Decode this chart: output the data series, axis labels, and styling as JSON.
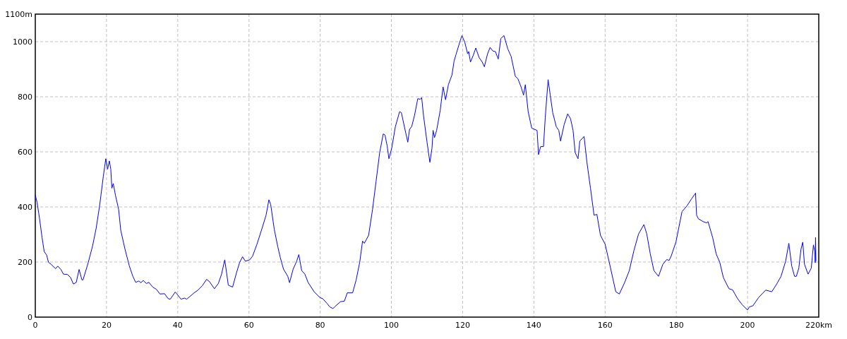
{
  "chart_data": {
    "type": "line",
    "grid": true,
    "xlim": [
      0,
      220
    ],
    "ylim": [
      0,
      1100
    ],
    "xticks": [
      0,
      20,
      40,
      60,
      80,
      100,
      120,
      140,
      160,
      180,
      200,
      {
        "value": 220,
        "label": "220km"
      }
    ],
    "yticks": [
      0,
      200,
      400,
      600,
      800,
      1000,
      {
        "value": 1100,
        "label": "1100m"
      }
    ],
    "series": [
      {
        "color": "#0000ff",
        "x": [
          0,
          0.5,
          1.2,
          1.9,
          2.5,
          3.2,
          3.7,
          4.5,
          5.7,
          6.3,
          7.2,
          7.9,
          9.0,
          9.9,
          10.7,
          11.5,
          12.3,
          13.1,
          13.4,
          14.8,
          16.1,
          17.1,
          18.1,
          19.1,
          19.8,
          20.3,
          20.8,
          21.2,
          21.5,
          21.9,
          22.5,
          23.4,
          24.0,
          25.2,
          26.4,
          27.4,
          28.2,
          29.0,
          29.7,
          30.3,
          31.2,
          31.9,
          33.0,
          34.0,
          35.0,
          36.3,
          37.3,
          37.9,
          39.3,
          39.9,
          40.9,
          41.9,
          42.5,
          43.6,
          44.6,
          45.6,
          46.9,
          48.1,
          48.9,
          50.3,
          51.4,
          52.3,
          53.2,
          54.2,
          55.4,
          56.5,
          57.4,
          58.2,
          59.0,
          60.2,
          61.0,
          62.2,
          63.5,
          64.8,
          65.6,
          66.1,
          67.1,
          68.1,
          68.8,
          69.7,
          70.9,
          71.4,
          72.4,
          73.4,
          74.0,
          74.8,
          75.7,
          76.6,
          78.3,
          79.9,
          80.7,
          81.9,
          82.7,
          83.6,
          84.2,
          85.7,
          86.8,
          87.6,
          89.1,
          90.1,
          91.1,
          91.9,
          92.4,
          93.6,
          94.7,
          95.7,
          96.7,
          97.7,
          98.2,
          98.8,
          99.3,
          100.1,
          101.1,
          102.3,
          102.8,
          103.8,
          104.6,
          105.1,
          105.7,
          106.5,
          107.4,
          108.1,
          108.5,
          109.0,
          110.0,
          110.8,
          111.4,
          111.7,
          112.1,
          112.7,
          113.7,
          114.5,
          115.2,
          116.0,
          117.0,
          117.6,
          118.2,
          119.3,
          119.8,
          120.6,
          121.4,
          121.7,
          122.2,
          123.0,
          123.7,
          124.6,
          125.5,
          126.1,
          127.0,
          127.7,
          128.5,
          129.2,
          130.0,
          130.7,
          131.6,
          132.7,
          133.6,
          134.8,
          135.5,
          136.4,
          137.1,
          137.6,
          138.4,
          139.4,
          140.1,
          140.9,
          141.3,
          141.9,
          142.7,
          143.2,
          144.0,
          144.6,
          145.3,
          146.3,
          147.0,
          147.5,
          148.5,
          149.5,
          150.3,
          151.0,
          151.6,
          152.4,
          152.9,
          154.1,
          154.9,
          155.9,
          156.9,
          157.7,
          158.7,
          160.0,
          161.1,
          162.2,
          163.0,
          164.0,
          165.5,
          166.8,
          168.1,
          169.4,
          170.9,
          171.7,
          172.7,
          173.7,
          175.0,
          176.2,
          177.3,
          178.0,
          178.6,
          179.9,
          181.6,
          183.0,
          184.3,
          185.4,
          185.7,
          186.2,
          187.5,
          188.5,
          188.9,
          190.2,
          191.2,
          192.2,
          193.2,
          194.2,
          194.8,
          195.8,
          197.2,
          198.5,
          200.0,
          200.5,
          201.5,
          203.1,
          205.1,
          206.8,
          208.1,
          209.4,
          210.7,
          211.6,
          212.4,
          213.2,
          213.7,
          214.4,
          215.0,
          215.5,
          216.0,
          217.0,
          217.9,
          218.5,
          218.9,
          219.0,
          219.1,
          219.2
        ],
        "values": [
          443,
          417,
          357,
          289,
          238,
          225,
          199,
          191,
          176,
          185,
          173,
          156,
          155,
          144,
          120,
          126,
          173,
          135,
          135,
          195,
          259,
          323,
          408,
          511,
          575,
          537,
          567,
          537,
          468,
          485,
          443,
          391,
          315,
          246,
          186,
          148,
          126,
          131,
          125,
          133,
          122,
          126,
          109,
          101,
          84,
          85,
          67,
          65,
          91,
          82,
          65,
          69,
          65,
          77,
          88,
          97,
          114,
          137,
          129,
          103,
          122,
          156,
          208,
          116,
          109,
          161,
          199,
          219,
          203,
          208,
          221,
          263,
          315,
          370,
          426,
          409,
          319,
          255,
          216,
          174,
          148,
          125,
          174,
          203,
          227,
          169,
          156,
          126,
          92,
          71,
          67,
          50,
          37,
          31,
          39,
          56,
          58,
          88,
          88,
          135,
          199,
          276,
          268,
          297,
          391,
          494,
          597,
          665,
          661,
          622,
          575,
          614,
          691,
          746,
          742,
          682,
          635,
          682,
          692,
          733,
          793,
          791,
          797,
          733,
          635,
          562,
          614,
          678,
          652,
          678,
          750,
          836,
          789,
          844,
          879,
          930,
          956,
          1003,
          1022,
          998,
          956,
          964,
          926,
          951,
          977,
          943,
          926,
          909,
          956,
          979,
          966,
          964,
          937,
          1011,
          1022,
          973,
          947,
          874,
          866,
          836,
          806,
          844,
          746,
          686,
          682,
          678,
          590,
          619,
          619,
          725,
          862,
          806,
          742,
          691,
          678,
          639,
          699,
          738,
          720,
          678,
          597,
          575,
          639,
          656,
          562,
          468,
          370,
          373,
          297,
          265,
          203,
          139,
          92,
          84,
          126,
          169,
          242,
          302,
          336,
          302,
          229,
          169,
          148,
          191,
          209,
          206,
          223,
          273,
          383,
          404,
          430,
          450,
          370,
          357,
          347,
          342,
          347,
          289,
          229,
          199,
          144,
          118,
          103,
          99,
          67,
          45,
          26,
          37,
          41,
          71,
          98,
          92,
          118,
          148,
          203,
          268,
          186,
          148,
          148,
          178,
          246,
          272,
          191,
          156,
          178,
          262,
          238,
          197,
          289,
          203
        ]
      }
    ]
  }
}
